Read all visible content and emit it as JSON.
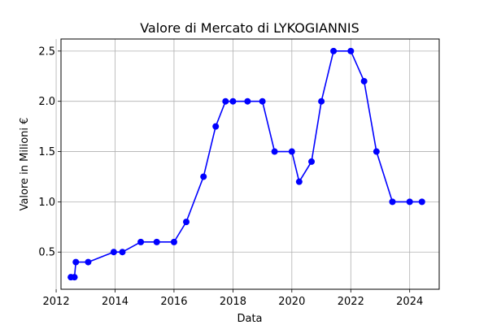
{
  "chart_data": {
    "type": "line",
    "title": "Valore di Mercato di LYKOGIANNIS",
    "xlabel": "Data",
    "ylabel": "Valore in Milioni €",
    "x_axis_type": "date",
    "xlim": [
      "2012-03-01",
      "2025-01-01"
    ],
    "ylim": [
      0.13,
      2.62
    ],
    "grid": true,
    "x_ticks": [
      {
        "value": "2012-01-01",
        "label": "2012"
      },
      {
        "value": "2014-01-01",
        "label": "2014"
      },
      {
        "value": "2016-01-01",
        "label": "2016"
      },
      {
        "value": "2018-01-01",
        "label": "2018"
      },
      {
        "value": "2020-01-01",
        "label": "2020"
      },
      {
        "value": "2022-01-01",
        "label": "2022"
      },
      {
        "value": "2024-01-01",
        "label": "2024"
      }
    ],
    "y_ticks": [
      {
        "value": 0.5,
        "label": "0.5"
      },
      {
        "value": 1.0,
        "label": "1.0"
      },
      {
        "value": 1.5,
        "label": "1.5"
      },
      {
        "value": 2.0,
        "label": "2.0"
      },
      {
        "value": 2.5,
        "label": "2.5"
      }
    ],
    "series": [
      {
        "color": "#0000ff",
        "marker": "circle",
        "points": [
          {
            "x": "2012-07-01",
            "y": 0.25
          },
          {
            "x": "2012-08-15",
            "y": 0.25
          },
          {
            "x": "2012-09-01",
            "y": 0.4
          },
          {
            "x": "2013-02-01",
            "y": 0.4
          },
          {
            "x": "2013-12-15",
            "y": 0.5
          },
          {
            "x": "2014-04-01",
            "y": 0.5
          },
          {
            "x": "2014-11-15",
            "y": 0.6
          },
          {
            "x": "2015-06-01",
            "y": 0.6
          },
          {
            "x": "2016-01-01",
            "y": 0.6
          },
          {
            "x": "2016-06-01",
            "y": 0.8
          },
          {
            "x": "2017-01-01",
            "y": 1.25
          },
          {
            "x": "2017-06-01",
            "y": 1.75
          },
          {
            "x": "2017-10-01",
            "y": 2.0
          },
          {
            "x": "2018-01-01",
            "y": 2.0
          },
          {
            "x": "2018-07-01",
            "y": 2.0
          },
          {
            "x": "2019-01-01",
            "y": 2.0
          },
          {
            "x": "2019-06-01",
            "y": 1.5
          },
          {
            "x": "2020-01-01",
            "y": 1.5
          },
          {
            "x": "2020-04-01",
            "y": 1.2
          },
          {
            "x": "2020-09-01",
            "y": 1.4
          },
          {
            "x": "2021-01-01",
            "y": 2.0
          },
          {
            "x": "2021-06-01",
            "y": 2.5
          },
          {
            "x": "2022-01-01",
            "y": 2.5
          },
          {
            "x": "2022-06-15",
            "y": 2.2
          },
          {
            "x": "2022-11-15",
            "y": 1.5
          },
          {
            "x": "2023-06-01",
            "y": 1.0
          },
          {
            "x": "2024-01-01",
            "y": 1.0
          },
          {
            "x": "2024-06-01",
            "y": 1.0
          }
        ]
      }
    ]
  }
}
